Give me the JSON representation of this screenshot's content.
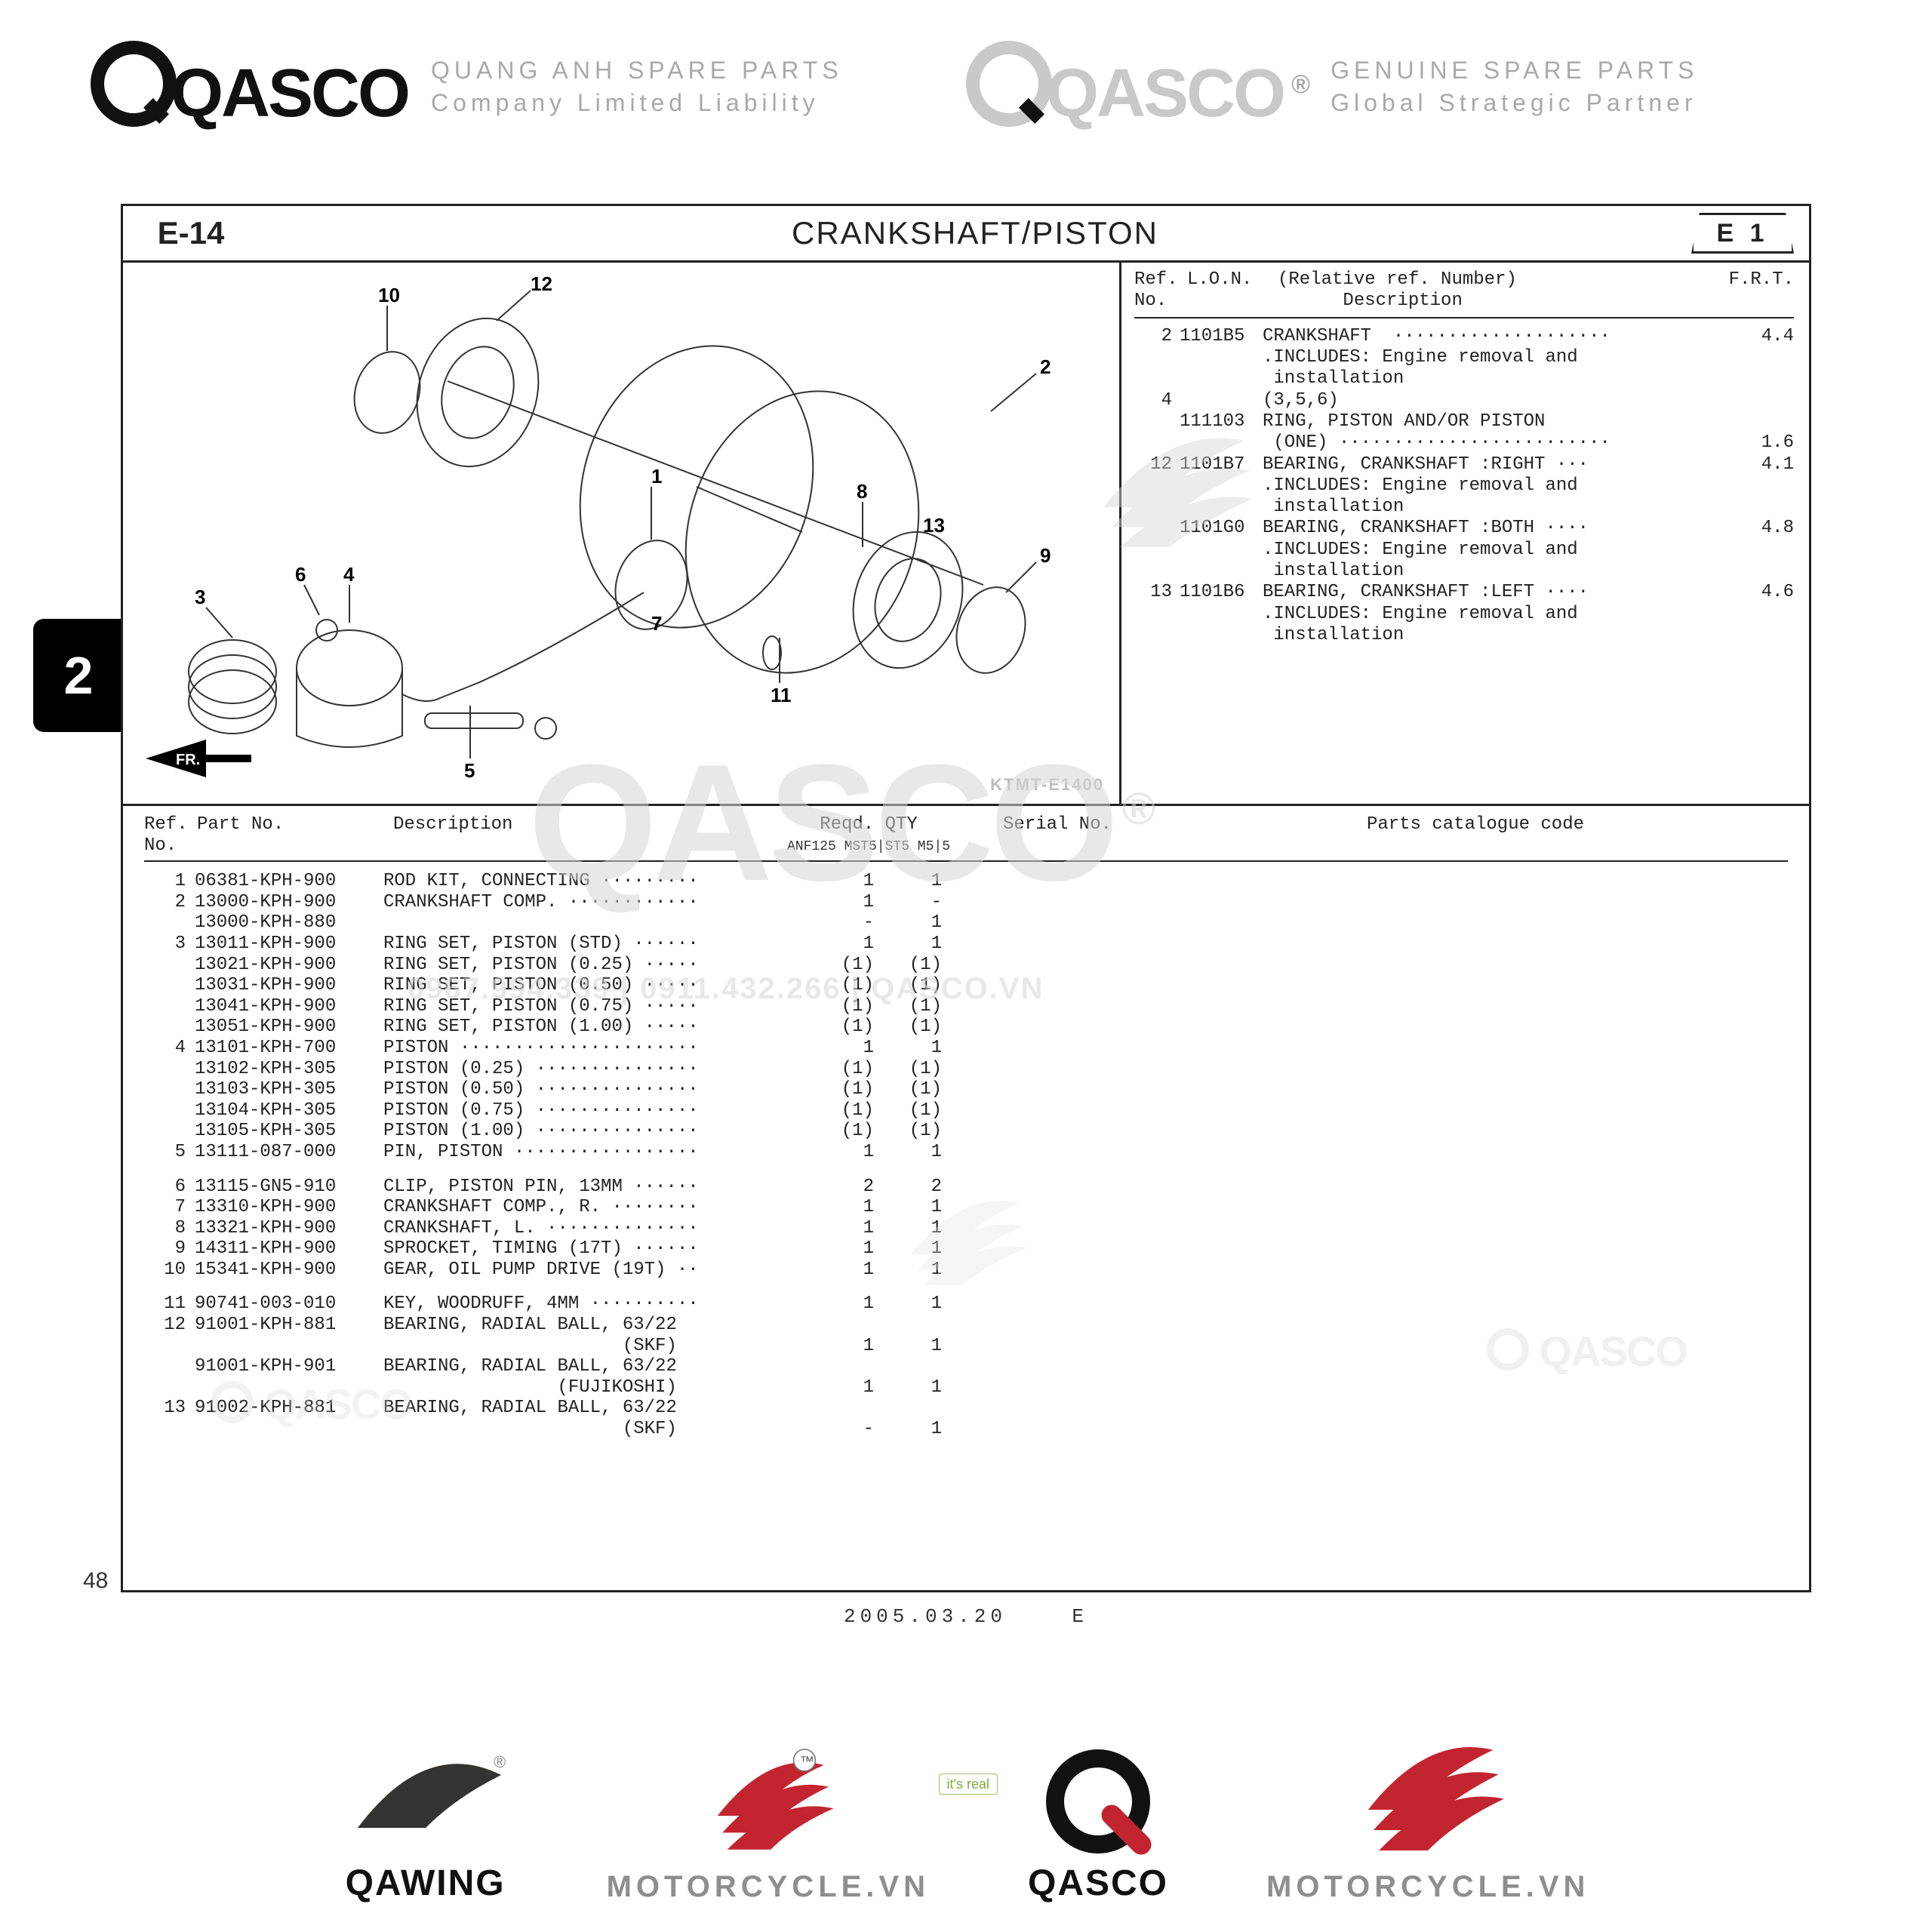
{
  "brand": {
    "name": "QASCO",
    "left_sub_line1": "QUANG ANH SPARE PARTS",
    "left_sub_line2": "Company Limited Liability",
    "right_sub_line1": "GENUINE SPARE PARTS",
    "right_sub_line2": "Global Strategic Partner",
    "reg": "®"
  },
  "sheet": {
    "code": "E-14",
    "title": "CRANKSHAFT/PISTON",
    "badge": "E 1",
    "diagram_code": "KTMT-E1400",
    "date": "2005.03.20",
    "lang": "E",
    "page": "48",
    "sidetab": "2"
  },
  "side_header": {
    "ref": "Ref.\nNo.",
    "lon": "L.O.N.",
    "desc_top": "(Relative ref. Number)",
    "desc": "Description",
    "frt": "F.R.T."
  },
  "side_rows": [
    {
      "ref": "2",
      "lon": "1101B5",
      "desc": "CRANKSHAFT  ····················",
      "frt": "4.4"
    },
    {
      "ref": "",
      "lon": "",
      "desc": ".INCLUDES: Engine removal and",
      "frt": ""
    },
    {
      "ref": "",
      "lon": "",
      "desc": " installation",
      "frt": ""
    },
    {
      "ref": "4",
      "lon": "",
      "desc": "(3,5,6)",
      "frt": ""
    },
    {
      "ref": "",
      "lon": "111103",
      "desc": "RING, PISTON AND/OR PISTON",
      "frt": ""
    },
    {
      "ref": "",
      "lon": "",
      "desc": " (ONE) ·························",
      "frt": "1.6"
    },
    {
      "ref": "12",
      "lon": "1101B7",
      "desc": "BEARING, CRANKSHAFT :RIGHT ···",
      "frt": "4.1"
    },
    {
      "ref": "",
      "lon": "",
      "desc": ".INCLUDES: Engine removal and",
      "frt": ""
    },
    {
      "ref": "",
      "lon": "",
      "desc": " installation",
      "frt": ""
    },
    {
      "ref": "",
      "lon": "1101G0",
      "desc": "BEARING, CRANKSHAFT :BOTH ····",
      "frt": "4.8"
    },
    {
      "ref": "",
      "lon": "",
      "desc": ".INCLUDES: Engine removal and",
      "frt": ""
    },
    {
      "ref": "",
      "lon": "",
      "desc": " installation",
      "frt": ""
    },
    {
      "ref": "13",
      "lon": "1101B6",
      "desc": "BEARING, CRANKSHAFT :LEFT ····",
      "frt": "4.6"
    },
    {
      "ref": "",
      "lon": "",
      "desc": ".INCLUDES: Engine removal and",
      "frt": ""
    },
    {
      "ref": "",
      "lon": "",
      "desc": " installation",
      "frt": ""
    }
  ],
  "lower_header": {
    "ref": "Ref.\nNo.",
    "part": "Part No.",
    "desc": "Description",
    "qty": "Reqd. QTY",
    "qty_sub": "ANF125\nMST5|ST5  M5|5",
    "serial": "Serial No.",
    "cat": "Parts catalogue code"
  },
  "parts": [
    {
      "ref": "1",
      "pn": "06381-KPH-900",
      "desc": "ROD KIT, CONNECTING ·········",
      "q1": "1",
      "q2": "1"
    },
    {
      "ref": "2",
      "pn": "13000-KPH-900",
      "desc": "CRANKSHAFT COMP. ············",
      "q1": "1",
      "q2": "-"
    },
    {
      "ref": "",
      "pn": "13000-KPH-880",
      "desc": "",
      "q1": "-",
      "q2": "1"
    },
    {
      "ref": "3",
      "pn": "13011-KPH-900",
      "desc": "RING SET, PISTON (STD) ······",
      "q1": "1",
      "q2": "1"
    },
    {
      "ref": "",
      "pn": "13021-KPH-900",
      "desc": "RING SET, PISTON (0.25) ·····",
      "q1": "(1)",
      "q2": "(1)"
    },
    {
      "ref": "",
      "pn": "13031-KPH-900",
      "desc": "RING SET, PISTON (0.50) ·····",
      "q1": "(1)",
      "q2": "(1)"
    },
    {
      "ref": "",
      "pn": "13041-KPH-900",
      "desc": "RING SET, PISTON (0.75) ·····",
      "q1": "(1)",
      "q2": "(1)"
    },
    {
      "ref": "",
      "pn": "13051-KPH-900",
      "desc": "RING SET, PISTON (1.00) ·····",
      "q1": "(1)",
      "q2": "(1)"
    },
    {
      "ref": "4",
      "pn": "13101-KPH-700",
      "desc": "PISTON ······················",
      "q1": "1",
      "q2": "1"
    },
    {
      "ref": "",
      "pn": "13102-KPH-305",
      "desc": "PISTON (0.25) ···············",
      "q1": "(1)",
      "q2": "(1)"
    },
    {
      "ref": "",
      "pn": "13103-KPH-305",
      "desc": "PISTON (0.50) ···············",
      "q1": "(1)",
      "q2": "(1)"
    },
    {
      "ref": "",
      "pn": "13104-KPH-305",
      "desc": "PISTON (0.75) ···············",
      "q1": "(1)",
      "q2": "(1)"
    },
    {
      "ref": "",
      "pn": "13105-KPH-305",
      "desc": "PISTON (1.00) ···············",
      "q1": "(1)",
      "q2": "(1)"
    },
    {
      "ref": "5",
      "pn": "13111-087-000",
      "desc": "PIN, PISTON ·················",
      "q1": "1",
      "q2": "1"
    },
    {
      "sep": true
    },
    {
      "ref": "6",
      "pn": "13115-GN5-910",
      "desc": "CLIP, PISTON PIN, 13MM ······",
      "q1": "2",
      "q2": "2"
    },
    {
      "ref": "7",
      "pn": "13310-KPH-900",
      "desc": "CRANKSHAFT COMP., R. ········",
      "q1": "1",
      "q2": "1"
    },
    {
      "ref": "8",
      "pn": "13321-KPH-900",
      "desc": "CRANKSHAFT, L. ··············",
      "q1": "1",
      "q2": "1"
    },
    {
      "ref": "9",
      "pn": "14311-KPH-900",
      "desc": "SPROCKET, TIMING (17T) ······",
      "q1": "1",
      "q2": "1"
    },
    {
      "ref": "10",
      "pn": "15341-KPH-900",
      "desc": "GEAR, OIL PUMP DRIVE (19T) ··",
      "q1": "1",
      "q2": "1"
    },
    {
      "sep": true
    },
    {
      "ref": "11",
      "pn": "90741-003-010",
      "desc": "KEY, WOODRUFF, 4MM ··········",
      "q1": "1",
      "q2": "1"
    },
    {
      "ref": "12",
      "pn": "91001-KPH-881",
      "desc": "BEARING, RADIAL BALL, 63/22",
      "q1": "",
      "q2": ""
    },
    {
      "ref": "",
      "pn": "",
      "desc": "                      (SKF)",
      "q1": "1",
      "q2": "1"
    },
    {
      "ref": "",
      "pn": "91001-KPH-901",
      "desc": "BEARING, RADIAL BALL, 63/22",
      "q1": "",
      "q2": ""
    },
    {
      "ref": "",
      "pn": "",
      "desc": "                (FUJIKOSHI)",
      "q1": "1",
      "q2": "1"
    },
    {
      "ref": "13",
      "pn": "91002-KPH-881",
      "desc": "BEARING, RADIAL BALL, 63/22",
      "q1": "",
      "q2": ""
    },
    {
      "ref": "",
      "pn": "",
      "desc": "                      (SKF)",
      "q1": "-",
      "q2": "1"
    }
  ],
  "diagram_callouts": [
    "1",
    "2",
    "3",
    "4",
    "5",
    "6",
    "7",
    "8",
    "9",
    "10",
    "11",
    "12",
    "13"
  ],
  "fr_arrow": "FR.",
  "watermark": {
    "big": "QASCO",
    "contact": "0967.994.339 | 0911.432.266 | QASCO.VN",
    "mini": "QASCO"
  },
  "footer": {
    "qawing": "QAWING",
    "moto": "MOTORCYCLE.VN",
    "qasco": "QASCO",
    "its_real": "it's real"
  },
  "colors": {
    "ink": "#222222",
    "grey": "#9b9b9b",
    "lgrey": "#d7d7d7",
    "red": "#c2252f",
    "orange": "#ed8b0f",
    "green": "#7cae3b"
  }
}
